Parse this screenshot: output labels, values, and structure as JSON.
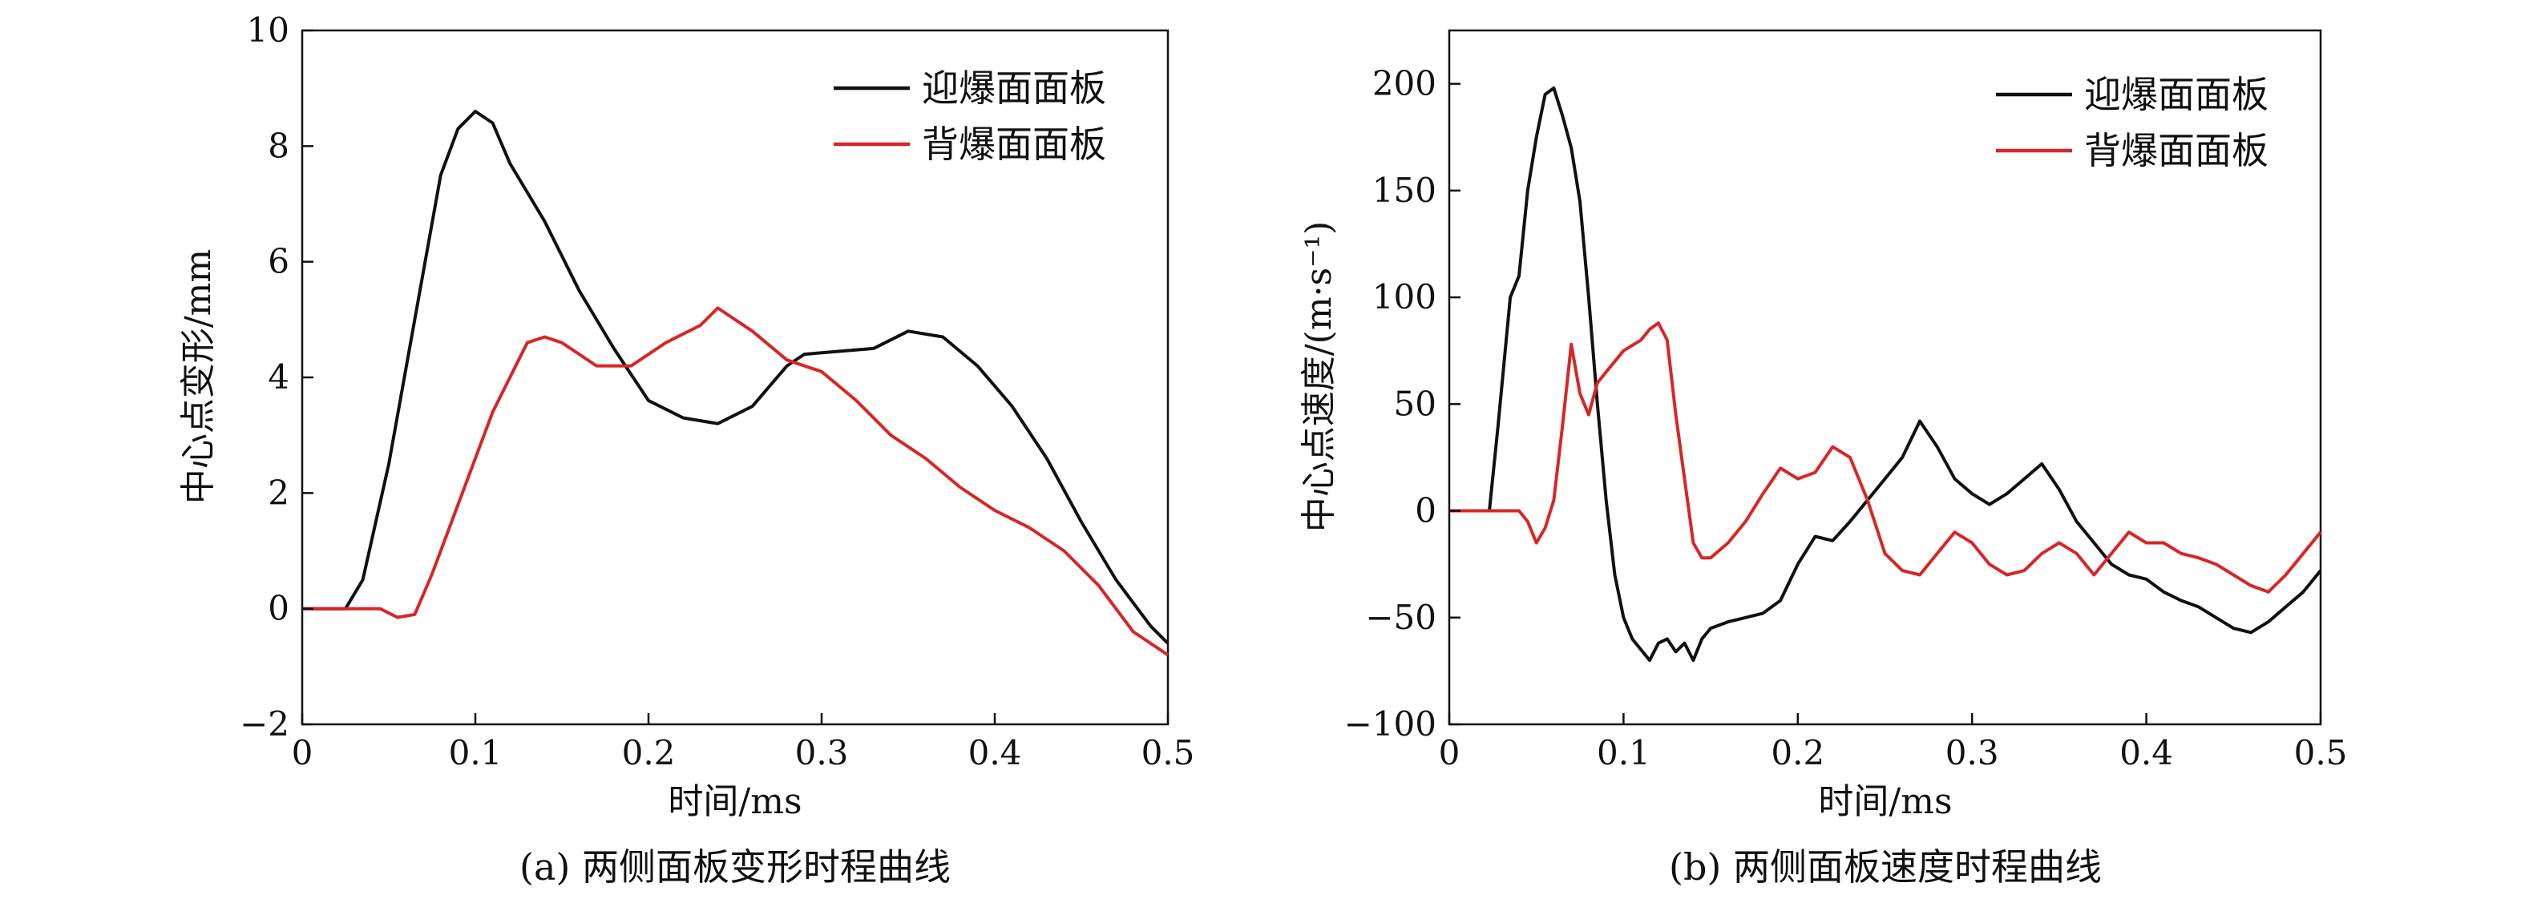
{
  "chart_data": [
    {
      "type": "line",
      "caption": "(a) 两侧面板变形时程曲线",
      "xlabel": "时间/ms",
      "ylabel": "中心点变形/mm",
      "xlim": [
        0,
        0.5
      ],
      "ylim": [
        -2,
        10
      ],
      "xticks": [
        "0",
        "0.1",
        "0.2",
        "0.3",
        "0.4",
        "0.5"
      ],
      "yticks": [
        "−2",
        "0",
        "2",
        "4",
        "6",
        "8",
        "10"
      ],
      "legend_position": "top-right",
      "grid": false,
      "series": [
        {
          "name": "迎爆面面板",
          "color": "#111111",
          "x": [
            0,
            0.025,
            0.035,
            0.05,
            0.065,
            0.08,
            0.09,
            0.1,
            0.11,
            0.12,
            0.14,
            0.16,
            0.18,
            0.2,
            0.22,
            0.24,
            0.26,
            0.28,
            0.29,
            0.31,
            0.33,
            0.35,
            0.37,
            0.39,
            0.41,
            0.43,
            0.45,
            0.47,
            0.49,
            0.5
          ],
          "y": [
            0,
            0,
            0.5,
            2.5,
            5,
            7.5,
            8.3,
            8.6,
            8.4,
            7.7,
            6.7,
            5.5,
            4.5,
            3.6,
            3.3,
            3.2,
            3.5,
            4.2,
            4.4,
            4.45,
            4.5,
            4.8,
            4.7,
            4.2,
            3.5,
            2.6,
            1.5,
            0.5,
            -0.3,
            -0.6
          ]
        },
        {
          "name": "背爆面面板",
          "color": "#d62728",
          "x": [
            0,
            0.045,
            0.055,
            0.065,
            0.075,
            0.09,
            0.11,
            0.13,
            0.14,
            0.15,
            0.17,
            0.19,
            0.21,
            0.23,
            0.24,
            0.26,
            0.28,
            0.3,
            0.32,
            0.34,
            0.36,
            0.38,
            0.4,
            0.42,
            0.44,
            0.46,
            0.48,
            0.5
          ],
          "y": [
            0,
            0,
            -0.15,
            -0.1,
            0.6,
            1.8,
            3.4,
            4.6,
            4.7,
            4.6,
            4.2,
            4.2,
            4.6,
            4.9,
            5.2,
            4.8,
            4.3,
            4.1,
            3.6,
            3.0,
            2.6,
            2.1,
            1.7,
            1.4,
            1.0,
            0.4,
            -0.4,
            -0.8
          ]
        }
      ]
    },
    {
      "type": "line",
      "caption": "(b) 两侧面板速度时程曲线",
      "xlabel": "时间/ms",
      "ylabel": "中心点速度/(m·s⁻¹)",
      "xlim": [
        0,
        0.5
      ],
      "ylim": [
        -100,
        225
      ],
      "xticks": [
        "0",
        "0.1",
        "0.2",
        "0.3",
        "0.4",
        "0.5"
      ],
      "yticks": [
        "−100",
        "−50",
        "0",
        "50",
        "100",
        "150",
        "200"
      ],
      "legend_position": "top-right",
      "grid": false,
      "series": [
        {
          "name": "迎爆面面板",
          "color": "#111111",
          "x": [
            0,
            0.023,
            0.028,
            0.035,
            0.04,
            0.045,
            0.05,
            0.055,
            0.06,
            0.065,
            0.07,
            0.075,
            0.08,
            0.085,
            0.09,
            0.095,
            0.1,
            0.105,
            0.11,
            0.115,
            0.12,
            0.125,
            0.13,
            0.135,
            0.14,
            0.145,
            0.15,
            0.16,
            0.17,
            0.18,
            0.19,
            0.2,
            0.21,
            0.22,
            0.23,
            0.24,
            0.25,
            0.26,
            0.27,
            0.28,
            0.29,
            0.3,
            0.31,
            0.32,
            0.33,
            0.34,
            0.35,
            0.36,
            0.37,
            0.38,
            0.39,
            0.4,
            0.41,
            0.42,
            0.43,
            0.44,
            0.45,
            0.46,
            0.47,
            0.48,
            0.49,
            0.5
          ],
          "y": [
            0,
            0,
            40,
            100,
            110,
            150,
            175,
            195,
            198,
            185,
            170,
            145,
            100,
            50,
            5,
            -30,
            -50,
            -60,
            -65,
            -70,
            -62,
            -60,
            -66,
            -62,
            -70,
            -60,
            -55,
            -52,
            -50,
            -48,
            -42,
            -25,
            -12,
            -14,
            -5,
            5,
            15,
            25,
            42,
            30,
            15,
            8,
            3,
            8,
            15,
            22,
            10,
            -5,
            -15,
            -25,
            -30,
            -32,
            -38,
            -42,
            -45,
            -50,
            -55,
            -57,
            -52,
            -45,
            -38,
            -28
          ]
        },
        {
          "name": "背爆面面板",
          "color": "#d62728",
          "x": [
            0,
            0.04,
            0.045,
            0.05,
            0.055,
            0.06,
            0.065,
            0.07,
            0.075,
            0.08,
            0.085,
            0.09,
            0.1,
            0.11,
            0.115,
            0.12,
            0.125,
            0.13,
            0.135,
            0.14,
            0.145,
            0.15,
            0.16,
            0.17,
            0.18,
            0.19,
            0.2,
            0.21,
            0.22,
            0.23,
            0.24,
            0.25,
            0.26,
            0.27,
            0.28,
            0.29,
            0.3,
            0.31,
            0.32,
            0.33,
            0.34,
            0.35,
            0.36,
            0.37,
            0.38,
            0.39,
            0.4,
            0.41,
            0.42,
            0.43,
            0.44,
            0.45,
            0.46,
            0.47,
            0.48,
            0.49,
            0.5
          ],
          "y": [
            0,
            0,
            -5,
            -15,
            -8,
            5,
            40,
            78,
            55,
            45,
            60,
            65,
            75,
            80,
            85,
            88,
            80,
            45,
            15,
            -15,
            -22,
            -22,
            -15,
            -5,
            8,
            20,
            15,
            18,
            30,
            25,
            5,
            -20,
            -28,
            -30,
            -20,
            -10,
            -15,
            -25,
            -30,
            -28,
            -20,
            -15,
            -20,
            -30,
            -20,
            -10,
            -15,
            -15,
            -20,
            -22,
            -25,
            -30,
            -35,
            -38,
            -30,
            -20,
            -10
          ]
        }
      ]
    }
  ]
}
